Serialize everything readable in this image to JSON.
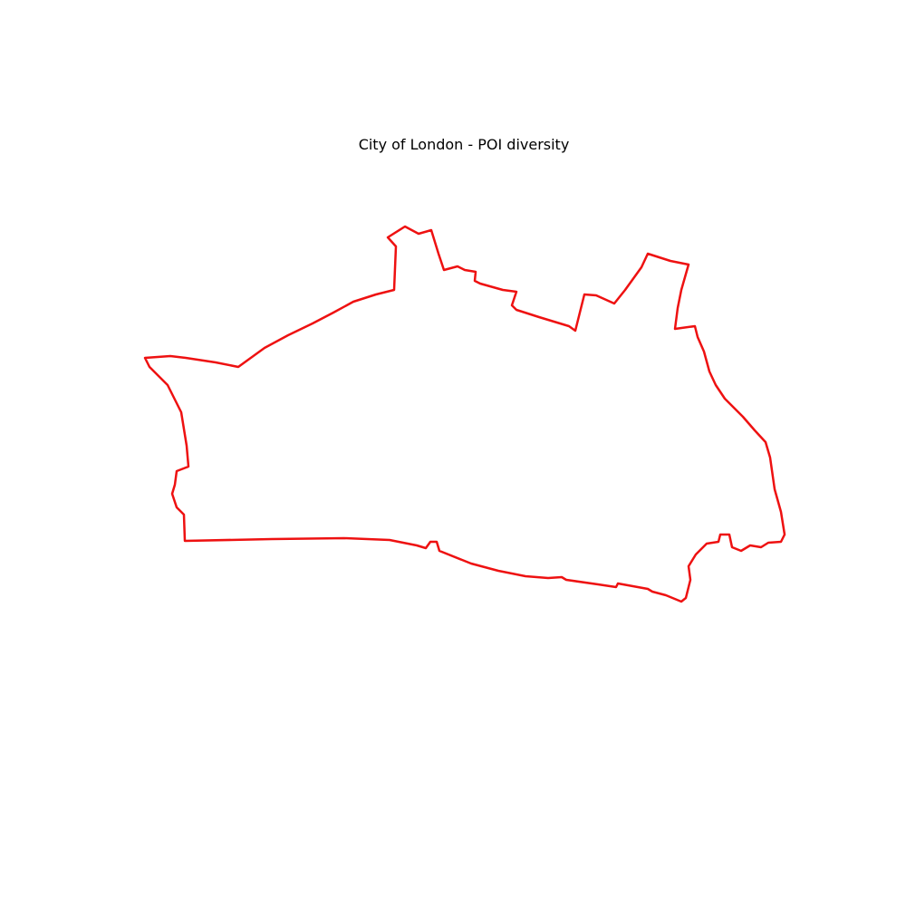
{
  "map": {
    "title": "City of London - POI diversity"
  },
  "colors": {
    "boundary": "#ee1111",
    "background": "#ffffff",
    "cluster_purple_dark": "#6b4a7a",
    "cluster_purple": "#6f4e8f",
    "cluster_purple_deep": "#4a2a66",
    "cluster_lavender": "#9f86b8",
    "cluster_slate": "#5b6e6e",
    "cluster_yellow": "#e4ec82",
    "cluster_lime": "#b6d84f",
    "cluster_green": "#6ed07a",
    "cluster_light_green": "#95d97a",
    "cluster_teal": "#8fd6b4",
    "cluster_pale_green": "#b5e6a2",
    "cluster_olive": "#8e9e75",
    "cluster_mid_green": "#5f9a6c",
    "cluster_blue_grey": "#6684a8"
  }
}
